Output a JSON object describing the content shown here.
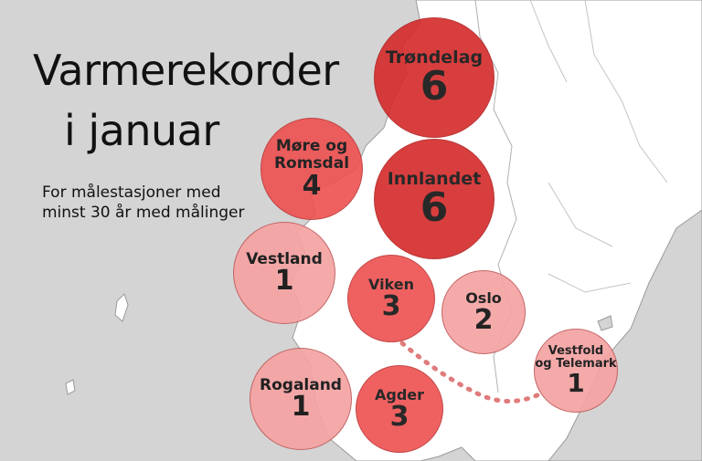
{
  "title_line1": "Varmerekorder",
  "title_line2": "i  januar",
  "subtitle_line1": "For målestasjoner med",
  "subtitle_line2": "minst 30 år med målinger",
  "colors": {
    "sea": "#d4d4d4",
    "land": "#ffffff",
    "dark_red": "#d42a2a",
    "mid_red": "#ee5050",
    "light_red": "#f5a3a3",
    "connector": "#e07b7b"
  },
  "regions": [
    {
      "id": "trondelag",
      "name_lines": [
        "Trøndelag"
      ],
      "count": "6"
    },
    {
      "id": "innlandet",
      "name_lines": [
        "Innlandet"
      ],
      "count": "6"
    },
    {
      "id": "more-og-romsdal",
      "name_lines": [
        "Møre og",
        "Romsdal"
      ],
      "count": "4"
    },
    {
      "id": "vestland",
      "name_lines": [
        "Vestland"
      ],
      "count": "1"
    },
    {
      "id": "viken",
      "name_lines": [
        "Viken"
      ],
      "count": "3"
    },
    {
      "id": "oslo",
      "name_lines": [
        "Oslo"
      ],
      "count": "2"
    },
    {
      "id": "vestfold-og-telemark",
      "name_lines": [
        "Vestfold",
        "og Telemark"
      ],
      "count": "1"
    },
    {
      "id": "rogaland",
      "name_lines": [
        "Rogaland"
      ],
      "count": "1"
    },
    {
      "id": "agder",
      "name_lines": [
        "Agder"
      ],
      "count": "3"
    }
  ]
}
